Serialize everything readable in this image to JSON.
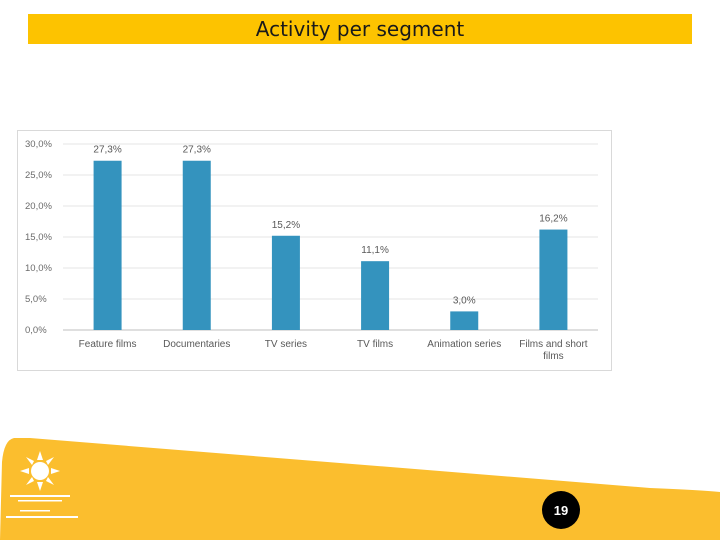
{
  "slide": {
    "title": "Activity per segment",
    "page_number": "19",
    "colors": {
      "title_bar": "#FDC300",
      "footer": "#FBBE2E",
      "bar": "#3493BE"
    }
  },
  "chart_data": {
    "type": "bar",
    "categories": [
      "Feature films",
      "Documentaries",
      "TV series",
      "TV films",
      "Animation series",
      "Films and short films"
    ],
    "category_lines": [
      [
        "Feature films"
      ],
      [
        "Documentaries"
      ],
      [
        "TV series"
      ],
      [
        "TV films"
      ],
      [
        "Animation series"
      ],
      [
        "Films and short",
        "films"
      ]
    ],
    "values": [
      27.3,
      27.3,
      15.2,
      11.1,
      3.0,
      16.2
    ],
    "value_labels": [
      "27,3%",
      "27,3%",
      "15,2%",
      "11,1%",
      "3,0%",
      "16,2%"
    ],
    "yticks": [
      "0,0%",
      "5,0%",
      "10,0%",
      "15,0%",
      "20,0%",
      "25,0%",
      "30,0%"
    ],
    "ylim": [
      0,
      30
    ],
    "grid": true,
    "legend": "none"
  }
}
